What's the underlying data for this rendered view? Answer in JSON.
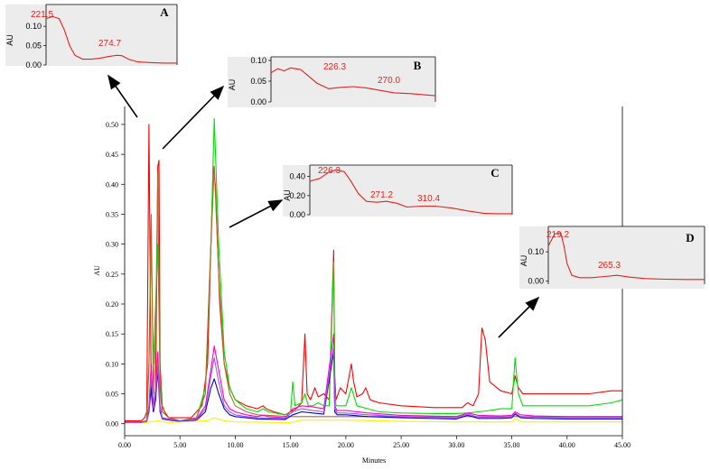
{
  "chart_data": [
    {
      "type": "line",
      "xlabel": "Minutes",
      "ylabel": "AU",
      "xlim": [
        0,
        45
      ],
      "ylim": [
        -0.02,
        0.53
      ],
      "x_ticks": [
        "0.00",
        "5.00",
        "10.00",
        "15.00",
        "20.00",
        "25.00",
        "30.00",
        "35.00",
        "40.00",
        "45.00"
      ],
      "y_ticks": [
        "0.00",
        "0.05",
        "0.10",
        "0.15",
        "0.20",
        "0.25",
        "0.30",
        "0.35",
        "0.40",
        "0.45",
        "0.50"
      ],
      "series": [
        {
          "color": "#ff0000",
          "x": [
            0,
            1.5,
            1.8,
            2.0,
            2.2,
            2.4,
            2.6,
            2.8,
            3.0,
            3.1,
            3.2,
            3.4,
            3.6,
            4.0,
            5.0,
            6.0,
            7.0,
            7.5,
            8.0,
            8.2,
            8.6,
            9.0,
            9.5,
            10.0,
            11.0,
            12.0,
            12.5,
            12.8,
            13.5,
            14.5,
            15.0,
            15.5,
            16.0,
            16.3,
            16.5,
            16.8,
            17.2,
            17.5,
            18.0,
            18.5,
            18.9,
            19.0,
            19.1,
            19.5,
            20.0,
            20.5,
            20.7,
            21.0,
            21.5,
            21.8,
            22.2,
            23.0,
            25.0,
            28.0,
            30.5,
            31.0,
            31.5,
            32.0,
            32.3,
            32.6,
            33.0,
            34.0,
            35.0,
            35.3,
            35.6,
            36.0,
            37.0,
            38.0,
            40.0,
            42.0,
            44.0,
            45.0
          ],
          "y": [
            0.005,
            0.005,
            0.01,
            0.02,
            0.5,
            0.05,
            0.02,
            0.05,
            0.43,
            0.44,
            0.1,
            0.03,
            0.02,
            0.01,
            0.01,
            0.01,
            0.03,
            0.1,
            0.43,
            0.4,
            0.2,
            0.1,
            0.06,
            0.04,
            0.03,
            0.025,
            0.03,
            0.025,
            0.02,
            0.015,
            0.02,
            0.025,
            0.035,
            0.15,
            0.05,
            0.04,
            0.06,
            0.045,
            0.05,
            0.04,
            0.29,
            0.08,
            0.04,
            0.06,
            0.05,
            0.1,
            0.07,
            0.045,
            0.05,
            0.06,
            0.04,
            0.035,
            0.03,
            0.027,
            0.027,
            0.035,
            0.03,
            0.05,
            0.16,
            0.14,
            0.07,
            0.055,
            0.05,
            0.08,
            0.06,
            0.05,
            0.05,
            0.05,
            0.05,
            0.05,
            0.055,
            0.055
          ]
        },
        {
          "color": "#00e000",
          "x": [
            0,
            1.5,
            2.0,
            2.2,
            2.4,
            2.6,
            2.8,
            3.0,
            3.2,
            3.4,
            4.0,
            5.0,
            6.5,
            7.3,
            7.8,
            8.1,
            8.5,
            9.0,
            9.5,
            10.0,
            11.0,
            12.0,
            12.5,
            13.0,
            14.5,
            15.0,
            15.2,
            15.4,
            16.0,
            16.3,
            16.6,
            17.0,
            17.5,
            18.0,
            18.5,
            18.9,
            19.0,
            19.1,
            19.5,
            20.0,
            20.5,
            21.0,
            22.0,
            23.0,
            25.0,
            28.0,
            30.0,
            31.0,
            32.0,
            33.0,
            34.0,
            35.0,
            35.3,
            35.6,
            36.0,
            37.0,
            40.0,
            42.0,
            44.0,
            45.0
          ],
          "y": [
            0.003,
            0.003,
            0.005,
            0.1,
            0.3,
            0.1,
            0.2,
            0.3,
            0.08,
            0.02,
            0.01,
            0.005,
            0.01,
            0.06,
            0.3,
            0.51,
            0.3,
            0.12,
            0.06,
            0.04,
            0.025,
            0.02,
            0.025,
            0.02,
            0.015,
            0.02,
            0.07,
            0.03,
            0.035,
            0.05,
            0.03,
            0.03,
            0.035,
            0.03,
            0.03,
            0.27,
            0.06,
            0.03,
            0.03,
            0.03,
            0.06,
            0.03,
            0.025,
            0.02,
            0.018,
            0.017,
            0.017,
            0.018,
            0.02,
            0.022,
            0.025,
            0.025,
            0.11,
            0.05,
            0.03,
            0.03,
            0.03,
            0.03,
            0.035,
            0.04
          ]
        },
        {
          "color": "#b46a2a",
          "x": [
            0,
            1.5,
            2.0,
            2.2,
            2.4,
            2.6,
            2.8,
            3.0,
            3.2,
            3.4,
            4.0,
            5.0,
            6.5,
            7.3,
            7.8,
            8.1,
            8.5,
            9.0,
            9.5,
            10.0,
            11.0,
            12.0,
            15.0,
            19.0,
            25.0,
            30.0,
            35.0,
            40.0,
            45.0
          ],
          "y": [
            0.003,
            0.003,
            0.005,
            0.1,
            0.35,
            0.05,
            0.15,
            0.42,
            0.06,
            0.02,
            0.01,
            0.005,
            0.01,
            0.05,
            0.3,
            0.43,
            0.25,
            0.1,
            0.05,
            0.03,
            0.02,
            0.015,
            0.012,
            0.012,
            0.012,
            0.012,
            0.012,
            0.012,
            0.012
          ]
        },
        {
          "color": "#ff00cc",
          "x": [
            0,
            1.5,
            2.0,
            2.2,
            2.4,
            2.6,
            2.8,
            3.0,
            3.2,
            3.4,
            4.0,
            5.0,
            6.5,
            7.3,
            7.8,
            8.1,
            8.5,
            9.0,
            9.5,
            10.0,
            11.0,
            12.0,
            12.5,
            13.0,
            14.5,
            15.2,
            16.0,
            17.0,
            18.0,
            18.9,
            19.0,
            19.2,
            20.0,
            22.0,
            25.0,
            30.0,
            31.0,
            32.0,
            34.0,
            35.0,
            35.3,
            35.8,
            37.0,
            40.0,
            45.0
          ],
          "y": [
            0.002,
            0.002,
            0.004,
            0.03,
            0.1,
            0.03,
            0.06,
            0.12,
            0.03,
            0.01,
            0.008,
            0.005,
            0.008,
            0.03,
            0.09,
            0.13,
            0.09,
            0.04,
            0.025,
            0.02,
            0.015,
            0.012,
            0.014,
            0.012,
            0.01,
            0.025,
            0.03,
            0.028,
            0.025,
            0.15,
            0.03,
            0.022,
            0.022,
            0.018,
            0.014,
            0.012,
            0.018,
            0.014,
            0.013,
            0.014,
            0.02,
            0.015,
            0.013,
            0.012,
            0.012
          ]
        },
        {
          "color": "#0000dd",
          "x": [
            0,
            1.5,
            2.0,
            2.2,
            2.4,
            2.6,
            2.8,
            3.0,
            3.2,
            3.4,
            4.0,
            5.0,
            6.5,
            7.3,
            7.8,
            8.1,
            8.5,
            9.0,
            9.5,
            10.0,
            11.0,
            12.0,
            14.5,
            15.2,
            16.0,
            17.0,
            18.0,
            18.9,
            19.0,
            19.2,
            20.0,
            22.0,
            25.0,
            30.0,
            31.0,
            32.0,
            34.0,
            35.0,
            35.3,
            35.8,
            37.0,
            40.0,
            45.0
          ],
          "y": [
            0.002,
            0.002,
            0.004,
            0.02,
            0.06,
            0.02,
            0.04,
            0.09,
            0.02,
            0.008,
            0.006,
            0.004,
            0.006,
            0.02,
            0.06,
            0.075,
            0.05,
            0.025,
            0.015,
            0.012,
            0.01,
            0.008,
            0.007,
            0.015,
            0.02,
            0.018,
            0.016,
            0.12,
            0.02,
            0.015,
            0.015,
            0.012,
            0.01,
            0.008,
            0.014,
            0.009,
            0.009,
            0.01,
            0.016,
            0.01,
            0.009,
            0.008,
            0.008
          ]
        },
        {
          "color": "#ffee00",
          "x": [
            0,
            2.0,
            3.0,
            4.0,
            7.5,
            8.1,
            9.0,
            10.0,
            15.0,
            16.0,
            20.0,
            25.0,
            30.0,
            35.0,
            35.3,
            36.0,
            40.0,
            45.0
          ],
          "y": [
            0.001,
            0.002,
            0.005,
            0.002,
            0.005,
            0.01,
            0.005,
            0.003,
            0.002,
            0.006,
            0.006,
            0.004,
            0.003,
            0.003,
            0.008,
            0.003,
            0.003,
            0.003
          ]
        },
        {
          "color": "#9b59d6",
          "x": [
            0,
            1.5,
            2.0,
            2.2,
            2.4,
            2.6,
            2.8,
            3.0,
            3.2,
            3.4,
            4.0,
            5.0,
            6.5,
            7.3,
            7.8,
            8.1,
            8.5,
            9.0,
            9.5,
            10.0,
            11.0,
            12.0,
            14.5,
            15.2,
            16.0,
            17.0,
            18.0,
            18.9,
            19.0,
            19.2,
            20.0,
            22.0,
            25.0,
            30.0,
            31.0,
            32.0,
            34.0,
            35.0,
            35.3,
            35.8,
            37.0,
            40.0,
            45.0
          ],
          "y": [
            0.002,
            0.002,
            0.004,
            0.025,
            0.08,
            0.025,
            0.05,
            0.1,
            0.025,
            0.009,
            0.007,
            0.005,
            0.007,
            0.025,
            0.08,
            0.11,
            0.07,
            0.03,
            0.02,
            0.015,
            0.012,
            0.01,
            0.009,
            0.02,
            0.025,
            0.022,
            0.02,
            0.13,
            0.025,
            0.018,
            0.018,
            0.015,
            0.012,
            0.01,
            0.016,
            0.011,
            0.011,
            0.012,
            0.018,
            0.012,
            0.011,
            0.01,
            0.01
          ]
        }
      ]
    },
    {
      "type": "line",
      "panel": "A",
      "ylabel": "AU",
      "y_ticks": [
        "0.10",
        "0.05",
        "0.00"
      ],
      "peak_labels": [
        "221.5",
        "274.7"
      ],
      "ylim": [
        0,
        0.14
      ],
      "series": [
        {
          "color": "#e0241f",
          "x": [
            0,
            0.05,
            0.1,
            0.14,
            0.18,
            0.22,
            0.28,
            0.35,
            0.42,
            0.48,
            0.54,
            0.58,
            0.63,
            0.7,
            0.8,
            0.9,
            1.0
          ],
          "y": [
            0.12,
            0.125,
            0.12,
            0.09,
            0.05,
            0.025,
            0.015,
            0.015,
            0.018,
            0.022,
            0.025,
            0.024,
            0.015,
            0.008,
            0.006,
            0.005,
            0.005
          ]
        }
      ]
    },
    {
      "type": "line",
      "panel": "B",
      "ylabel": "AU",
      "y_ticks": [
        "0.10",
        "0.05",
        "0.00"
      ],
      "peak_labels": [
        "226.3",
        "270.0"
      ],
      "ylim": [
        0,
        0.1
      ],
      "series": [
        {
          "color": "#e0241f",
          "x": [
            0,
            0.04,
            0.08,
            0.12,
            0.18,
            0.22,
            0.28,
            0.35,
            0.42,
            0.5,
            0.58,
            0.66,
            0.75,
            0.85,
            1.0
          ],
          "y": [
            0.07,
            0.08,
            0.075,
            0.082,
            0.078,
            0.065,
            0.045,
            0.032,
            0.035,
            0.037,
            0.034,
            0.028,
            0.022,
            0.02,
            0.015
          ]
        }
      ]
    },
    {
      "type": "line",
      "panel": "C",
      "ylabel": "AU",
      "y_ticks": [
        "0.40",
        "0.20",
        "0.00"
      ],
      "peak_labels": [
        "226.3",
        "271.2",
        "310.4"
      ],
      "ylim": [
        0,
        0.5
      ],
      "series": [
        {
          "color": "#e0241f",
          "x": [
            0,
            0.05,
            0.09,
            0.13,
            0.17,
            0.2,
            0.24,
            0.28,
            0.33,
            0.38,
            0.43,
            0.48,
            0.55,
            0.62,
            0.7,
            0.78,
            0.86,
            0.93,
            1.0
          ],
          "y": [
            0.35,
            0.38,
            0.44,
            0.47,
            0.45,
            0.36,
            0.22,
            0.14,
            0.13,
            0.14,
            0.12,
            0.08,
            0.09,
            0.09,
            0.07,
            0.04,
            0.015,
            0.01,
            0.01
          ]
        }
      ]
    },
    {
      "type": "line",
      "panel": "D",
      "ylabel": "AU",
      "y_ticks": [
        "0.10",
        "0.00"
      ],
      "peak_labels": [
        "219.2",
        "265.3"
      ],
      "ylim": [
        -0.01,
        0.18
      ],
      "series": [
        {
          "color": "#e0241f",
          "x": [
            0,
            0.04,
            0.08,
            0.1,
            0.12,
            0.15,
            0.2,
            0.28,
            0.36,
            0.44,
            0.52,
            0.62,
            0.75,
            0.88,
            1.0
          ],
          "y": [
            0.12,
            0.16,
            0.165,
            0.12,
            0.06,
            0.02,
            0.012,
            0.012,
            0.016,
            0.02,
            0.014,
            0.009,
            0.007,
            0.006,
            0.006
          ]
        }
      ]
    }
  ]
}
